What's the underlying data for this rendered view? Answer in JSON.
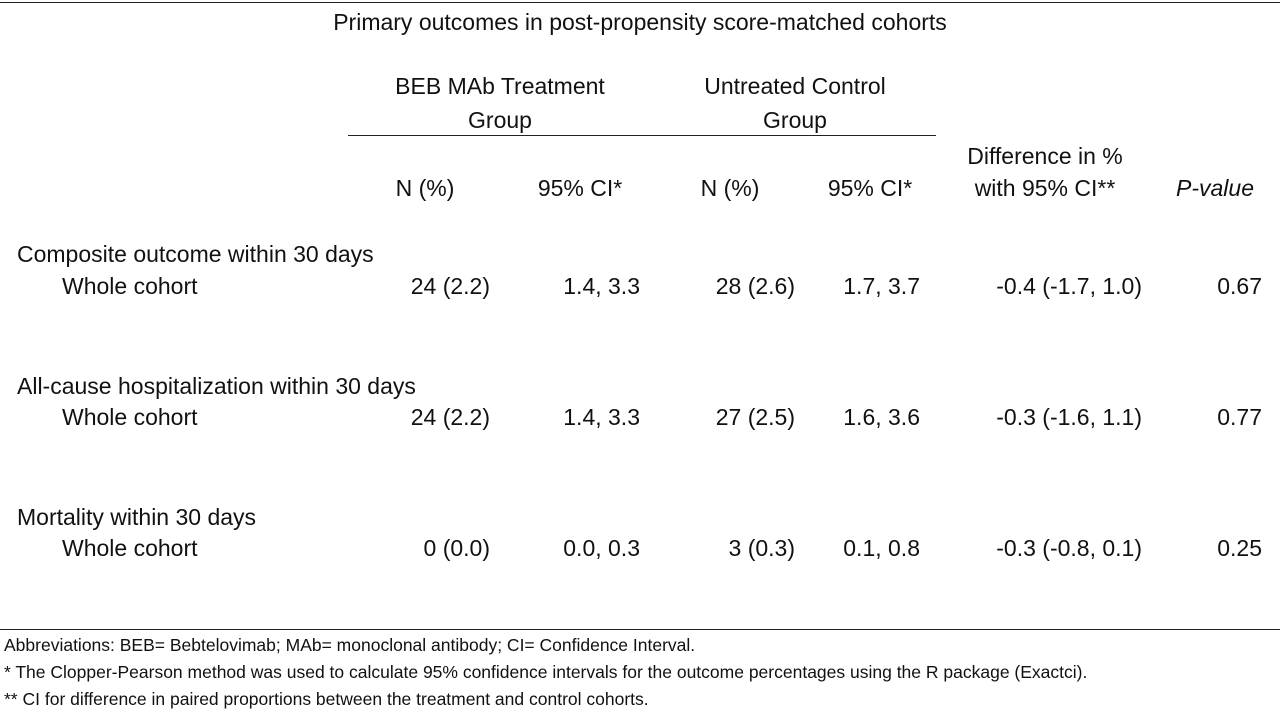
{
  "table": {
    "title": "Primary outcomes in post-propensity score-matched cohorts",
    "group_headers": {
      "treatment": {
        "line1": "BEB MAb Treatment",
        "line2": "Group"
      },
      "control": {
        "line1": "Untreated Control",
        "line2": "Group"
      }
    },
    "column_headers": {
      "n_pct_treatment": "N (%)",
      "ci_treatment": "95% CI*",
      "n_pct_control": "N (%)",
      "ci_control": "95% CI*",
      "difference_line1": "Difference in %",
      "difference_line2": "with 95% CI**",
      "pvalue": "P-value"
    },
    "sections": [
      {
        "title": "Composite outcome within 30 days",
        "row_label": "Whole cohort",
        "treat_n": "24 (2.2)",
        "treat_ci": "1.4, 3.3",
        "ctrl_n": "28 (2.6)",
        "ctrl_ci": "1.7, 3.7",
        "diff": "-0.4 (-1.7, 1.0)",
        "p": "0.67"
      },
      {
        "title": "All-cause hospitalization within 30 days",
        "row_label": "Whole cohort",
        "treat_n": "24 (2.2)",
        "treat_ci": "1.4, 3.3",
        "ctrl_n": "27 (2.5)",
        "ctrl_ci": "1.6, 3.6",
        "diff": "-0.3 (-1.6, 1.1)",
        "p": "0.77"
      },
      {
        "title": "Mortality within 30 days",
        "row_label": "Whole cohort",
        "treat_n": "0 (0.0)",
        "treat_ci": "0.0, 0.3",
        "ctrl_n": "3 (0.3)",
        "ctrl_ci": "0.1, 0.8",
        "diff": "-0.3 (-0.8, 0.1)",
        "p": "0.25"
      }
    ],
    "footnotes": [
      "Abbreviations: BEB= Bebtelovimab; MAb= monoclonal antibody; CI= Confidence Interval.",
      "* The Clopper-Pearson method was used to calculate 95% confidence intervals for the outcome percentages using the R package (Exactci).",
      "** CI for difference in paired proportions between the treatment and control cohorts."
    ]
  }
}
